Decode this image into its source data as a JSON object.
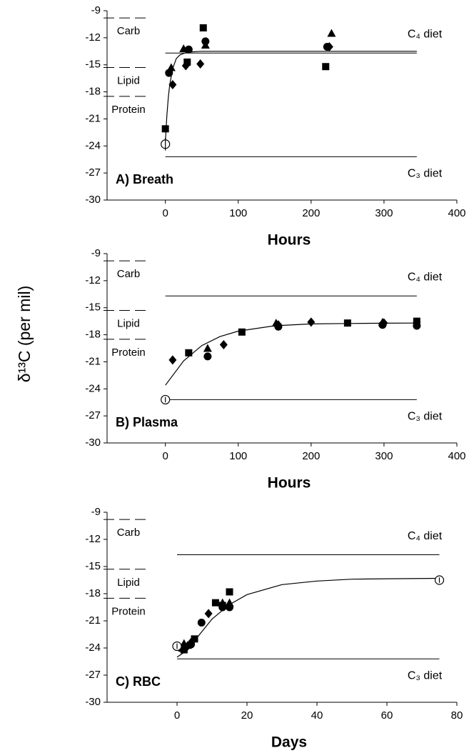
{
  "chart_data": [
    {
      "type": "scatter",
      "title": "A) Breath",
      "xlabel": "Hours",
      "xlim": [
        -80,
        400
      ],
      "xticks": [
        0,
        100,
        200,
        300,
        400
      ],
      "ylim": [
        -30,
        -9
      ],
      "yticks": [
        -30,
        -27,
        -24,
        -21,
        -18,
        -15,
        -12,
        -9
      ],
      "levels": [
        {
          "label": "Carb",
          "value": -9.8
        },
        {
          "label": "Lipid",
          "value": -15.3
        },
        {
          "label": "Protein",
          "value": -18.5
        }
      ],
      "reference_lines": [
        {
          "label": "C₄ diet",
          "value": -13.7,
          "x": [
            0,
            345
          ]
        },
        {
          "label": "C₃ diet",
          "value": -25.2,
          "x": [
            0,
            345
          ]
        }
      ],
      "fit": {
        "color": "#000000",
        "x": [
          0,
          2,
          4,
          6,
          10,
          15,
          20,
          30,
          50,
          100,
          200,
          345
        ],
        "values": [
          -23.5,
          -20.7,
          -18.6,
          -17.2,
          -15.4,
          -14.3,
          -13.9,
          -13.6,
          -13.5,
          -13.5,
          -13.5,
          -13.5
        ]
      },
      "series": [
        {
          "marker": "square",
          "color": "#000000",
          "x": [
            0,
            30,
            52,
            220
          ],
          "values": [
            -22.1,
            -14.7,
            -10.9,
            -15.2
          ]
        },
        {
          "marker": "circle",
          "color": "#000000",
          "x": [
            5,
            32,
            55,
            222
          ],
          "values": [
            -15.9,
            -13.3,
            -12.4,
            -13.0
          ]
        },
        {
          "marker": "triangle",
          "color": "#000000",
          "x": [
            8,
            25,
            55,
            228
          ],
          "values": [
            -15.3,
            -13.2,
            -12.8,
            -11.5
          ]
        },
        {
          "marker": "diamond",
          "color": "#000000",
          "x": [
            10,
            28,
            48,
            225
          ],
          "values": [
            -17.2,
            -15.1,
            -14.9,
            -13.0
          ]
        },
        {
          "marker": "open-circle",
          "color": "#000000",
          "x": [
            0
          ],
          "values": [
            -23.8
          ],
          "errors": [
            0.7
          ]
        }
      ]
    },
    {
      "type": "scatter",
      "title": "B) Plasma",
      "xlabel": "Hours",
      "ylabel": "δ¹³C (per mil)",
      "xlim": [
        -80,
        400
      ],
      "xticks": [
        0,
        100,
        200,
        300,
        400
      ],
      "ylim": [
        -30,
        -9
      ],
      "yticks": [
        -30,
        -27,
        -24,
        -21,
        -18,
        -15,
        -12,
        -9
      ],
      "levels": [
        {
          "label": "Carb",
          "value": -9.8
        },
        {
          "label": "Lipid",
          "value": -15.3
        },
        {
          "label": "Protein",
          "value": -18.5
        }
      ],
      "reference_lines": [
        {
          "label": "C₄ diet",
          "value": -13.7,
          "x": [
            0,
            345
          ]
        },
        {
          "label": "C₃ diet",
          "value": -25.2,
          "x": [
            0,
            345
          ]
        }
      ],
      "fit": {
        "color": "#000000",
        "x": [
          0,
          25,
          50,
          75,
          100,
          150,
          200,
          250,
          300,
          345
        ],
        "values": [
          -23.6,
          -20.9,
          -19.2,
          -18.2,
          -17.6,
          -17.0,
          -16.8,
          -16.75,
          -16.72,
          -16.7
        ]
      },
      "series": [
        {
          "marker": "diamond",
          "color": "#000000",
          "x": [
            10,
            80,
            155,
            200,
            300,
            345
          ],
          "values": [
            -20.8,
            -19.1,
            -16.9,
            -16.6,
            -16.7,
            -16.6
          ]
        },
        {
          "marker": "square",
          "color": "#000000",
          "x": [
            32,
            105,
            250,
            345
          ],
          "values": [
            -20.0,
            -17.7,
            -16.7,
            -16.5
          ]
        },
        {
          "marker": "triangle",
          "color": "#000000",
          "x": [
            58,
            152,
            298
          ],
          "values": [
            -19.5,
            -16.7,
            -16.6
          ]
        },
        {
          "marker": "circle",
          "color": "#000000",
          "x": [
            58,
            155,
            298,
            345
          ],
          "values": [
            -20.4,
            -17.1,
            -16.9,
            -17.0
          ]
        },
        {
          "marker": "open-circle",
          "color": "#000000",
          "x": [
            0
          ],
          "values": [
            -25.2
          ],
          "errors": [
            0.3
          ]
        }
      ]
    },
    {
      "type": "scatter",
      "title": "C) RBC",
      "xlabel": "Days",
      "xlim": [
        -20,
        80
      ],
      "xticks": [
        0,
        20,
        40,
        60,
        80
      ],
      "ylim": [
        -30,
        -9
      ],
      "yticks": [
        -30,
        -27,
        -24,
        -21,
        -18,
        -15,
        -12,
        -9
      ],
      "levels": [
        {
          "label": "Carb",
          "value": -9.8
        },
        {
          "label": "Lipid",
          "value": -15.3
        },
        {
          "label": "Protein",
          "value": -18.5
        }
      ],
      "reference_lines": [
        {
          "label": "C₄ diet",
          "value": -13.7,
          "x": [
            0,
            75
          ]
        },
        {
          "label": "C₃ diet",
          "value": -25.2,
          "x": [
            0,
            75
          ]
        }
      ],
      "fit": {
        "color": "#000000",
        "x": [
          0,
          2,
          5,
          10,
          15,
          20,
          30,
          40,
          50,
          60,
          75
        ],
        "values": [
          -25.0,
          -24.5,
          -23.2,
          -20.8,
          -19.2,
          -18.1,
          -17.0,
          -16.6,
          -16.4,
          -16.35,
          -16.3
        ]
      },
      "series": [
        {
          "marker": "square",
          "color": "#000000",
          "x": [
            2,
            5,
            11,
            13,
            15
          ],
          "values": [
            -24.2,
            -23.0,
            -19.0,
            -19.3,
            -17.8
          ]
        },
        {
          "marker": "triangle",
          "color": "#000000",
          "x": [
            2,
            3,
            13,
            15
          ],
          "values": [
            -23.5,
            -23.7,
            -19.0,
            -19.0
          ]
        },
        {
          "marker": "diamond",
          "color": "#000000",
          "x": [
            3,
            4,
            9,
            13
          ],
          "values": [
            -23.8,
            -23.4,
            -20.2,
            -19.3
          ]
        },
        {
          "marker": "circle",
          "color": "#000000",
          "x": [
            1,
            4,
            7,
            13,
            15
          ],
          "values": [
            -24.0,
            -23.6,
            -21.2,
            -19.5,
            -19.5
          ]
        },
        {
          "marker": "open-circle",
          "color": "#000000",
          "x": [
            0,
            75
          ],
          "values": [
            -23.8,
            -16.5
          ],
          "errors": [
            0.3,
            0.3
          ]
        }
      ]
    }
  ]
}
